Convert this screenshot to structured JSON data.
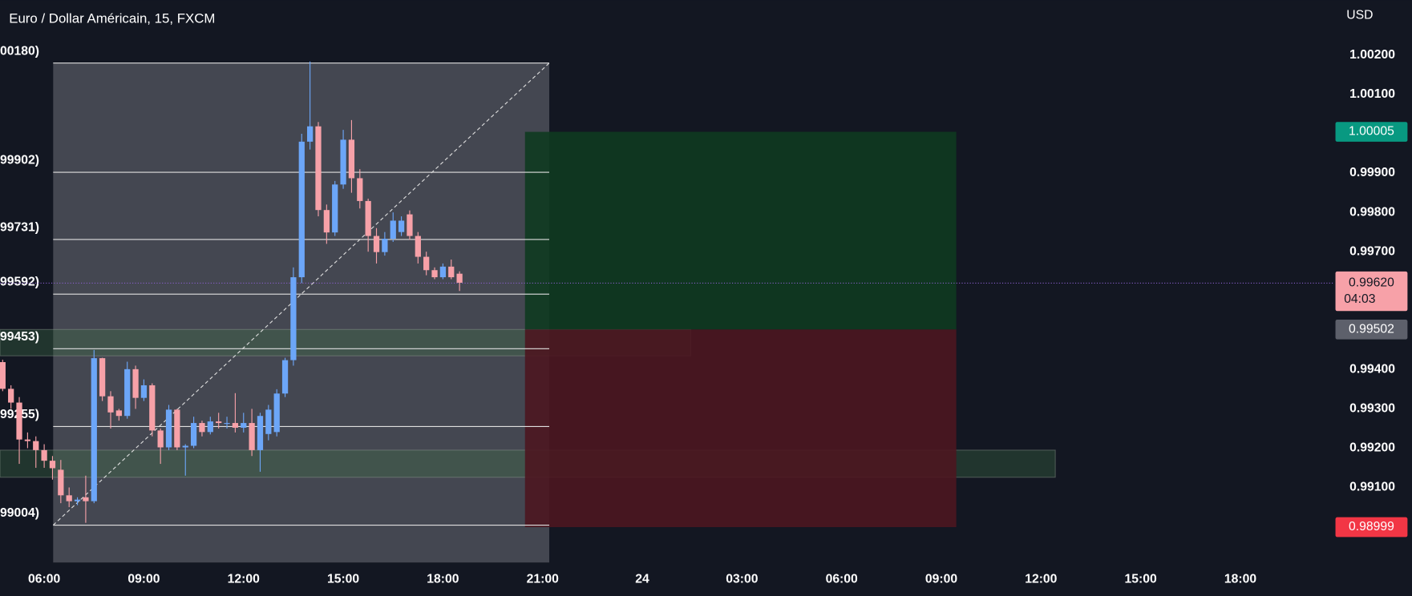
{
  "chart_data": {
    "type": "candlestick",
    "title": "Euro / Dollar Américain, 15, FXCM",
    "currency": "USD",
    "xlim": [
      4.67,
      44.78
    ],
    "ylim": [
      0.98909,
      1.0034
    ],
    "xticks": [
      {
        "value": 6,
        "label": "06:00"
      },
      {
        "value": 9,
        "label": "09:00"
      },
      {
        "value": 12,
        "label": "12:00"
      },
      {
        "value": 15,
        "label": "15:00"
      },
      {
        "value": 18,
        "label": "18:00"
      },
      {
        "value": 21,
        "label": "21:00"
      },
      24,
      {
        "value": 27,
        "label": "03:00"
      },
      {
        "value": 30,
        "label": "06:00"
      },
      {
        "value": 33,
        "label": "09:00"
      },
      {
        "value": 36,
        "label": "12:00"
      },
      {
        "value": 39,
        "label": "15:00"
      },
      {
        "value": 42,
        "label": "18:00"
      }
    ],
    "yticks": [
      {
        "value": 1.002,
        "label": "1.00200"
      },
      {
        "value": 1.001,
        "label": "1.00100"
      },
      {
        "value": 0.999,
        "label": "0.99900"
      },
      {
        "value": 0.998,
        "label": "0.99800"
      },
      {
        "value": 0.997,
        "label": "0.99700"
      },
      {
        "value": 0.994,
        "label": "0.99400"
      },
      {
        "value": 0.993,
        "label": "0.99300"
      },
      {
        "value": 0.992,
        "label": "0.99200"
      },
      {
        "value": 0.991,
        "label": "0.99100"
      }
    ],
    "up_color": "#6ca6f8",
    "down_color": "#f7a1a8",
    "candles": {
      "x": [
        4.75,
        5,
        5.25,
        5.5,
        5.75,
        6,
        6.25,
        6.5,
        6.75,
        7,
        7.25,
        7.5,
        7.75,
        8,
        8.25,
        8.5,
        8.75,
        9,
        9.25,
        9.5,
        9.75,
        10,
        10.25,
        10.5,
        10.75,
        11,
        11.25,
        11.5,
        11.75,
        12,
        12.25,
        12.5,
        12.75,
        13,
        13.25,
        13.5,
        13.75,
        14,
        14.25,
        14.5,
        14.75,
        15,
        15.25,
        15.5,
        15.75,
        16,
        16.25,
        16.5,
        16.75,
        17,
        17.25,
        17.5,
        17.75,
        18,
        18.25,
        18.5
      ],
      "open": [
        0.99419,
        0.99351,
        0.99316,
        0.99222,
        0.99218,
        0.99195,
        0.99168,
        0.99145,
        0.9908,
        0.99065,
        0.99075,
        0.99065,
        0.99429,
        0.99332,
        0.99296,
        0.99282,
        0.99401,
        0.99328,
        0.9936,
        0.99245,
        0.99202,
        0.99298,
        0.99202,
        0.99206,
        0.99264,
        0.99241,
        0.99268,
        0.99264,
        0.99264,
        0.99252,
        0.99264,
        0.99195,
        0.99236,
        0.99241,
        0.99339,
        0.99424,
        0.99635,
        0.9998,
        1.00019,
        0.99806,
        0.99749,
        0.99871,
        0.99985,
        0.99887,
        0.99829,
        0.9974,
        0.99699,
        0.99733,
        0.9975,
        0.99795,
        0.9974,
        0.99687,
        0.99653,
        0.99635,
        0.99662,
        0.99644
      ],
      "high": [
        0.99425,
        0.9936,
        0.9933,
        0.9924,
        0.9923,
        0.9921,
        0.9918,
        0.9917,
        0.991,
        0.99075,
        0.9913,
        0.9945,
        0.9943,
        0.99345,
        0.993,
        0.9942,
        0.9941,
        0.99375,
        0.99365,
        0.9925,
        0.9931,
        0.993,
        0.9921,
        0.9928,
        0.9927,
        0.9928,
        0.9929,
        0.9928,
        0.9934,
        0.9929,
        0.993,
        0.9929,
        0.9931,
        0.9935,
        0.9943,
        0.9966,
        1.0,
        1.00184,
        1.0003,
        0.9982,
        0.9988,
        1.0001,
        1.00035,
        0.9991,
        0.99835,
        0.9976,
        0.9975,
        0.998,
        0.9979,
        0.99805,
        0.9975,
        0.997,
        0.9966,
        0.9967,
        0.9968,
        0.9965
      ],
      "low": [
        0.99345,
        0.993,
        0.9916,
        0.992,
        0.9915,
        0.9915,
        0.9912,
        0.9906,
        0.9905,
        0.99055,
        0.9901,
        0.9906,
        0.9932,
        0.9925,
        0.9927,
        0.99275,
        0.993,
        0.9932,
        0.9923,
        0.9916,
        0.99195,
        0.99195,
        0.9913,
        0.992,
        0.9923,
        0.99235,
        0.9925,
        0.9925,
        0.9924,
        0.9924,
        0.9918,
        0.9914,
        0.9922,
        0.9923,
        0.9933,
        0.9941,
        0.9962,
        0.9996,
        0.9979,
        0.9972,
        0.9974,
        0.9986,
        0.9985,
        0.9981,
        0.997,
        0.9967,
        0.9969,
        0.99725,
        0.9974,
        0.9973,
        0.9967,
        0.9964,
        0.9963,
        0.9963,
        0.9963,
        0.996
      ],
      "close": [
        0.99351,
        0.99316,
        0.99222,
        0.99218,
        0.99195,
        0.99168,
        0.99149,
        0.9908,
        0.99065,
        0.99069,
        0.99065,
        0.99429,
        0.99332,
        0.99291,
        0.99282,
        0.99401,
        0.99328,
        0.9936,
        0.99245,
        0.99202,
        0.99298,
        0.99202,
        0.99206,
        0.99264,
        0.99241,
        0.99268,
        0.99264,
        0.99264,
        0.99252,
        0.99264,
        0.99195,
        0.99282,
        0.99298,
        0.99339,
        0.99424,
        0.99635,
        0.9998,
        1.00019,
        0.99806,
        0.99749,
        0.99871,
        0.99985,
        0.99887,
        0.99829,
        0.9974,
        0.99699,
        0.99733,
        0.99779,
        0.99779,
        0.9974,
        0.99687,
        0.99653,
        0.99635,
        0.99662,
        0.99635,
        0.99621
      ]
    },
    "fib": {
      "x": [
        6.27,
        21.2
      ],
      "fill": "#4a4d57",
      "levels": [
        {
          "value": 1.0018,
          "label": "00180)"
        },
        {
          "value": 0.99902,
          "label": "99902)"
        },
        {
          "value": 0.99731,
          "label": "99731)"
        },
        {
          "value": 0.99592,
          "label": "99592)"
        },
        {
          "value": 0.99453,
          "label": "99453)"
        },
        {
          "value": 0.99255,
          "label": "99255)"
        },
        {
          "value": 0.99004,
          "label": "99004)"
        }
      ]
    },
    "zones": [
      {
        "x_end": 25.46,
        "range": [
          0.99435,
          0.99502
        ]
      },
      {
        "x_end": 36.43,
        "range": [
          0.99126,
          0.99195
        ]
      }
    ],
    "position": {
      "x": [
        20.47,
        33.45
      ],
      "target_color": "#0f3a20",
      "stop_color": "#4c1620",
      "target": {
        "value": 1.00005,
        "label": "1.00005",
        "color": "#089981"
      },
      "entry": {
        "value": 0.99502,
        "label": "0.99502",
        "color": "#5d606b"
      },
      "stop": {
        "value": 0.98999,
        "label": "0.98999",
        "color": "#f23645"
      }
    },
    "last_price": {
      "value": 0.9962,
      "label": "0.99620",
      "countdown": "04:03",
      "color": "#f7a1a8"
    }
  }
}
